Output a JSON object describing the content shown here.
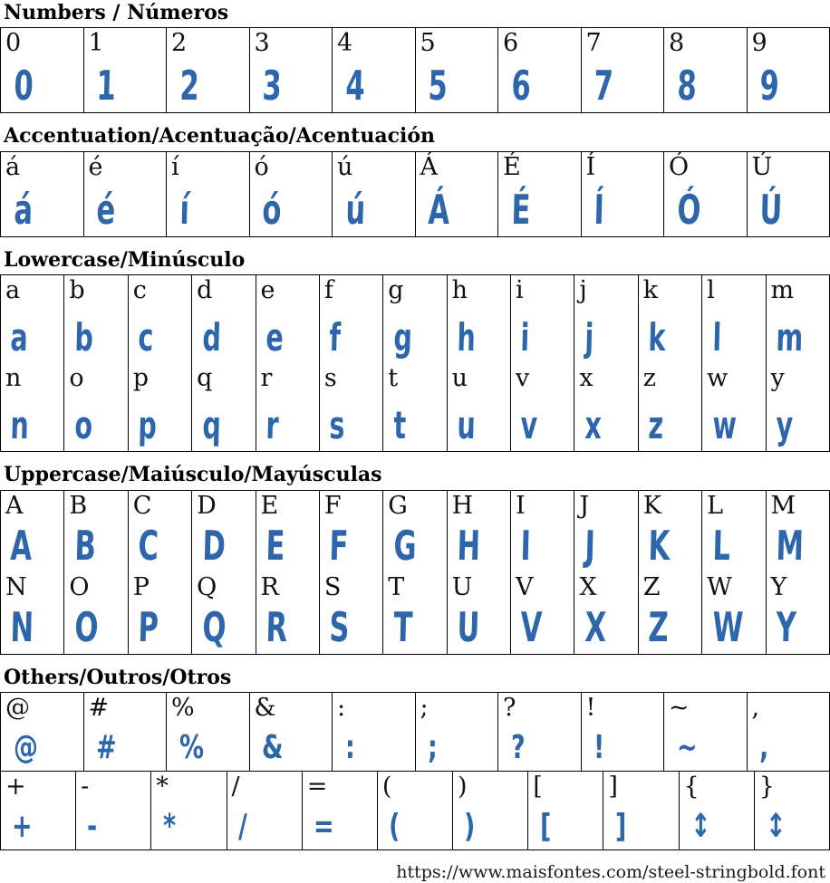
{
  "font_preview": {
    "glyph_color": "#2e66ac",
    "label_color": "#111111",
    "border_color": "#000000"
  },
  "sections": [
    {
      "id": "numbers",
      "title": "Numbers / Números",
      "rows": [
        [
          "0",
          "1",
          "2",
          "3",
          "4",
          "5",
          "6",
          "7",
          "8",
          "9"
        ]
      ]
    },
    {
      "id": "accentuation",
      "title": "Accentuation/Acentuação/Acentuación",
      "rows": [
        [
          "á",
          "é",
          "í",
          "ó",
          "ú",
          "Á",
          "É",
          "Í",
          "Ó",
          "Ú"
        ]
      ]
    },
    {
      "id": "lowercase",
      "title": "Lowercase/Minúsculo",
      "rows": [
        [
          "a",
          "b",
          "c",
          "d",
          "e",
          "f",
          "g",
          "h",
          "i",
          "j",
          "k",
          "l",
          "m"
        ],
        [
          "n",
          "o",
          "p",
          "q",
          "r",
          "s",
          "t",
          "u",
          "v",
          "x",
          "z",
          "w",
          "y"
        ]
      ]
    },
    {
      "id": "uppercase",
      "title": "Uppercase/Maiúsculo/Mayúsculas",
      "rows": [
        [
          "A",
          "B",
          "C",
          "D",
          "E",
          "F",
          "G",
          "H",
          "I",
          "J",
          "K",
          "L",
          "M"
        ],
        [
          "N",
          "O",
          "P",
          "Q",
          "R",
          "S",
          "T",
          "U",
          "V",
          "X",
          "Z",
          "W",
          "Y"
        ]
      ]
    },
    {
      "id": "others",
      "title": "Others/Outros/Otros",
      "rows": [
        [
          "@",
          "#",
          "%",
          "&",
          ":",
          ";",
          "?",
          "!",
          "~",
          ","
        ],
        [
          "+",
          "-",
          "*",
          "/",
          "=",
          "(",
          ")",
          "[",
          "]",
          [
            "{",
            "↕"
          ],
          [
            "}",
            "↕"
          ]
        ]
      ]
    }
  ],
  "footer": {
    "url": "https://www.maisfontes.com/steel-stringbold.font"
  }
}
